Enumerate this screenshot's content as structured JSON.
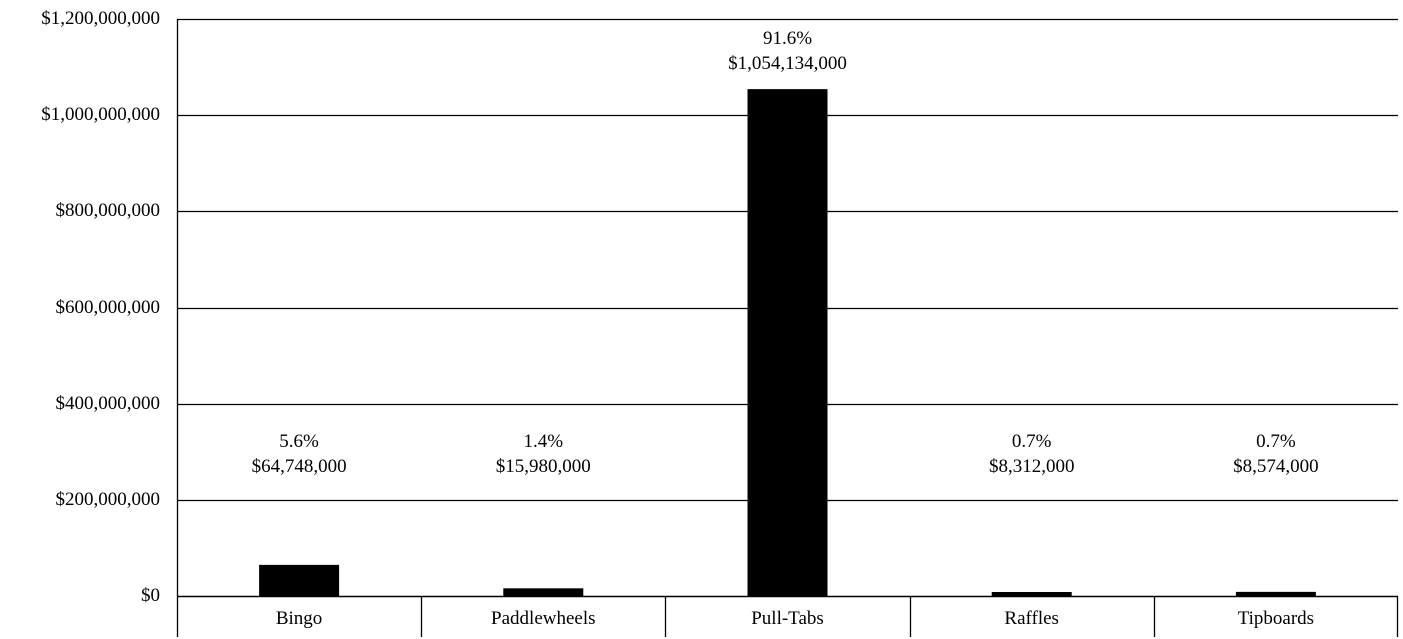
{
  "chart_data": {
    "type": "bar",
    "title": "",
    "xlabel": "",
    "ylabel": "",
    "categories": [
      "Bingo",
      "Paddlewheels",
      "Pull-Tabs",
      "Raffles",
      "Tipboards"
    ],
    "values": [
      64748000,
      15980000,
      1054134000,
      8312000,
      8574000
    ],
    "bar_labels": [
      {
        "percent": "5.6%",
        "amount": "$64,748,000"
      },
      {
        "percent": "1.4%",
        "amount": "$15,980,000"
      },
      {
        "percent": "91.6%",
        "amount": "$1,054,134,000"
      },
      {
        "percent": "0.7%",
        "amount": "$8,312,000"
      },
      {
        "percent": "0.7%",
        "amount": "$8,574,000"
      }
    ],
    "ylim": [
      0,
      1200000000
    ],
    "y_ticks": [
      0,
      200000000,
      400000000,
      600000000,
      800000000,
      1000000000,
      1200000000
    ],
    "y_tick_labels": [
      "$0",
      "$200,000,000",
      "$400,000,000",
      "$600,000,000",
      "$800,000,000",
      "$1,000,000,000",
      "$1,200,000,000"
    ],
    "grid": true,
    "bar_color": "#000000",
    "grid_color": "#000000"
  }
}
